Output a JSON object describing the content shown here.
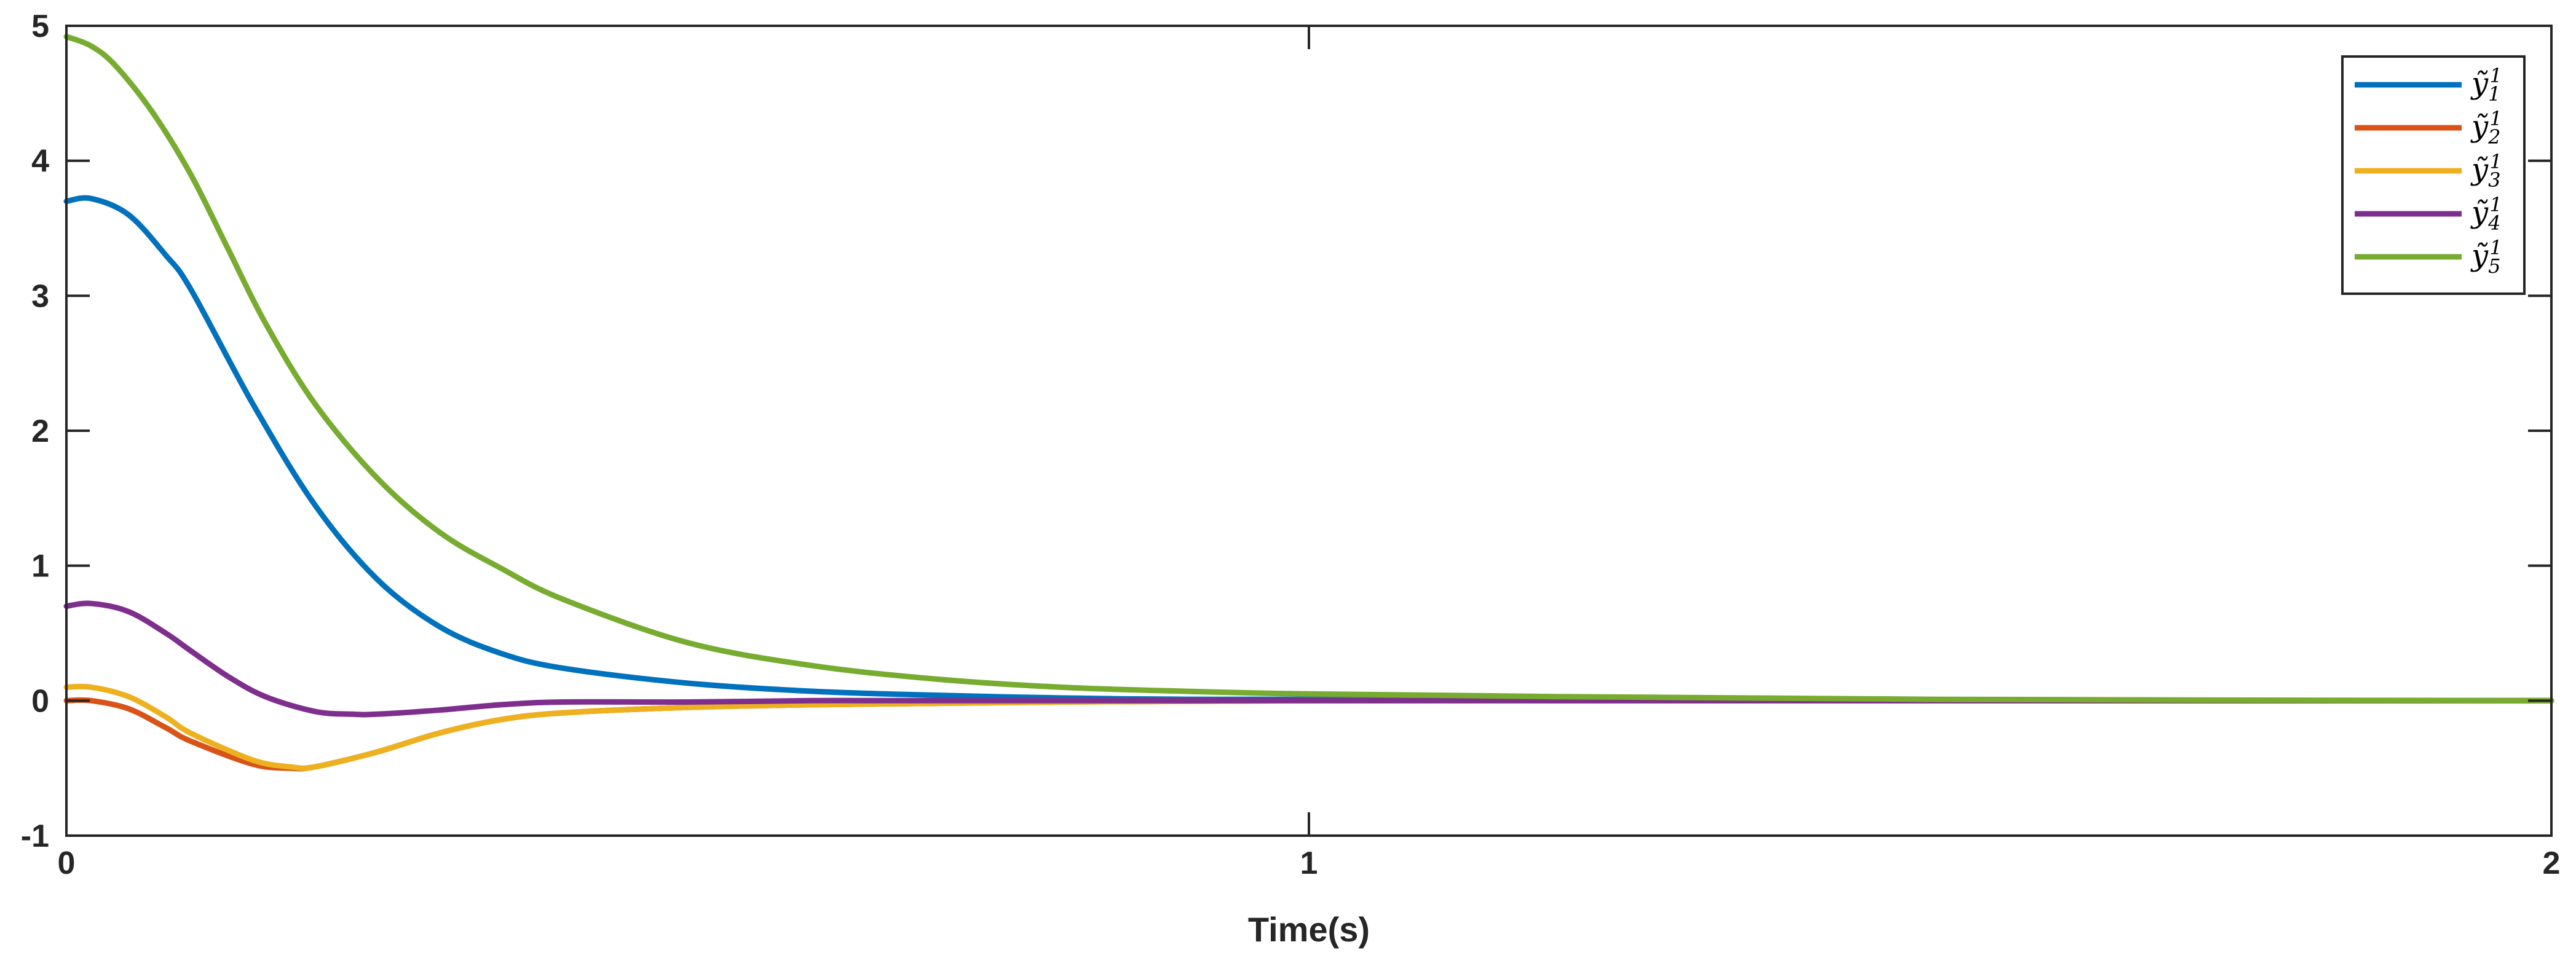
{
  "chart_data": {
    "type": "line",
    "title": "",
    "xlabel": "Time(s)",
    "ylabel": "",
    "xlim": [
      0,
      2
    ],
    "ylim": [
      -1,
      5
    ],
    "xticks": [
      "0",
      "1",
      "2"
    ],
    "yticks": [
      "-1",
      "0",
      "1",
      "2",
      "3",
      "4",
      "5"
    ],
    "grid": false,
    "legend_position": "top-right",
    "series": [
      {
        "name": "ỹ11",
        "color": "#0072BD",
        "x": [
          0,
          0.02,
          0.05,
          0.08,
          0.1,
          0.15,
          0.2,
          0.25,
          0.3,
          0.35,
          0.4,
          0.5,
          0.6,
          0.7,
          0.8,
          0.9,
          1.0,
          1.2,
          1.5,
          2.0
        ],
        "y": [
          3.7,
          3.72,
          3.6,
          3.3,
          3.05,
          2.2,
          1.45,
          0.9,
          0.55,
          0.35,
          0.24,
          0.13,
          0.07,
          0.04,
          0.02,
          0.01,
          0.01,
          0.0,
          0.0,
          0.0
        ]
      },
      {
        "name": "ỹ21",
        "color": "#D95319",
        "x": [
          0,
          0.02,
          0.05,
          0.08,
          0.1,
          0.15,
          0.18,
          0.2,
          0.25,
          0.3,
          0.35,
          0.4,
          0.5,
          0.6,
          0.7,
          0.8,
          1.0,
          1.5,
          2.0
        ],
        "y": [
          0.0,
          0.0,
          -0.06,
          -0.2,
          -0.3,
          -0.47,
          -0.5,
          -0.49,
          -0.38,
          -0.24,
          -0.14,
          -0.09,
          -0.05,
          -0.03,
          -0.02,
          -0.01,
          0.0,
          0.0,
          0.0
        ]
      },
      {
        "name": "ỹ31",
        "color": "#EDB120",
        "x": [
          0,
          0.02,
          0.05,
          0.08,
          0.1,
          0.15,
          0.18,
          0.2,
          0.25,
          0.3,
          0.35,
          0.4,
          0.5,
          0.6,
          0.7,
          0.8,
          1.0,
          1.5,
          2.0
        ],
        "y": [
          0.1,
          0.1,
          0.03,
          -0.12,
          -0.24,
          -0.44,
          -0.49,
          -0.49,
          -0.38,
          -0.24,
          -0.14,
          -0.09,
          -0.05,
          -0.03,
          -0.02,
          -0.01,
          0.0,
          0.0,
          0.0
        ]
      },
      {
        "name": "ỹ41",
        "color": "#7E2F8E",
        "x": [
          0,
          0.02,
          0.05,
          0.08,
          0.1,
          0.13,
          0.16,
          0.2,
          0.23,
          0.25,
          0.3,
          0.35,
          0.4,
          0.5,
          0.6,
          0.7,
          1.0,
          1.5,
          2.0
        ],
        "y": [
          0.7,
          0.72,
          0.66,
          0.5,
          0.37,
          0.18,
          0.03,
          -0.08,
          -0.1,
          -0.1,
          -0.07,
          -0.03,
          -0.01,
          -0.01,
          0.0,
          0.0,
          0.0,
          0.0,
          0.0
        ]
      },
      {
        "name": "ỹ51",
        "color": "#77AC30",
        "x": [
          0,
          0.02,
          0.04,
          0.07,
          0.1,
          0.13,
          0.16,
          0.2,
          0.25,
          0.3,
          0.35,
          0.4,
          0.5,
          0.6,
          0.7,
          0.8,
          0.9,
          1.0,
          1.2,
          1.5,
          2.0
        ],
        "y": [
          4.92,
          4.85,
          4.7,
          4.35,
          3.9,
          3.35,
          2.8,
          2.2,
          1.65,
          1.25,
          0.98,
          0.75,
          0.43,
          0.26,
          0.16,
          0.1,
          0.07,
          0.05,
          0.03,
          0.01,
          0.0
        ]
      }
    ]
  }
}
